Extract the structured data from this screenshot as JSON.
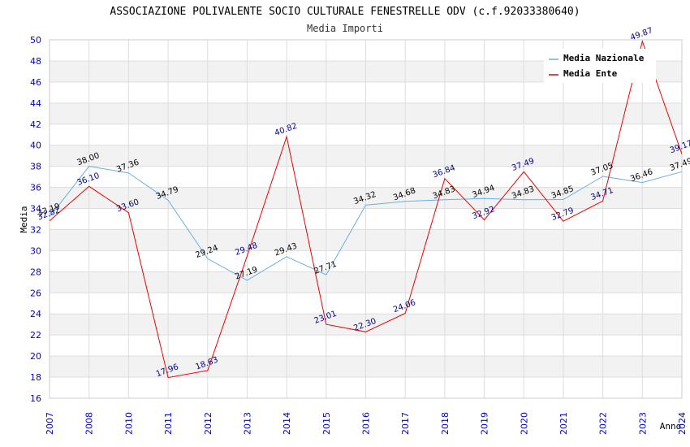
{
  "chart_data": {
    "type": "line",
    "title": "ASSOCIAZIONE POLIVALENTE SOCIO CULTURALE FENESTRELLE ODV (c.f.92033380640)",
    "subtitle": "Media Importi",
    "xlabel": "Anno",
    "ylabel": "Media",
    "x": [
      "2007",
      "2008",
      "2010",
      "2011",
      "2012",
      "2013",
      "2014",
      "2015",
      "2016",
      "2017",
      "2018",
      "2019",
      "2020",
      "2021",
      "2022",
      "2023",
      "2024"
    ],
    "ylim": [
      16,
      50
    ],
    "yticks": [
      16,
      18,
      20,
      22,
      24,
      26,
      28,
      30,
      32,
      34,
      36,
      38,
      40,
      42,
      44,
      46,
      48,
      50
    ],
    "grid": true,
    "legend_position": "top-right",
    "series": [
      {
        "name": "Media Nazionale",
        "color": "#6aaee8",
        "label_color": "#000000",
        "values": [
          33.19,
          38.0,
          37.36,
          34.79,
          29.24,
          27.19,
          29.43,
          27.71,
          34.32,
          34.68,
          34.83,
          34.94,
          34.83,
          34.85,
          37.05,
          36.46,
          37.49
        ]
      },
      {
        "name": "Media Ente",
        "color": "#ee0000",
        "label_color": "#00008b",
        "values": [
          32.82,
          36.1,
          33.6,
          17.96,
          18.63,
          29.48,
          40.82,
          23.01,
          22.3,
          24.06,
          36.84,
          32.92,
          37.49,
          32.79,
          34.71,
          49.87,
          39.17
        ]
      }
    ]
  }
}
